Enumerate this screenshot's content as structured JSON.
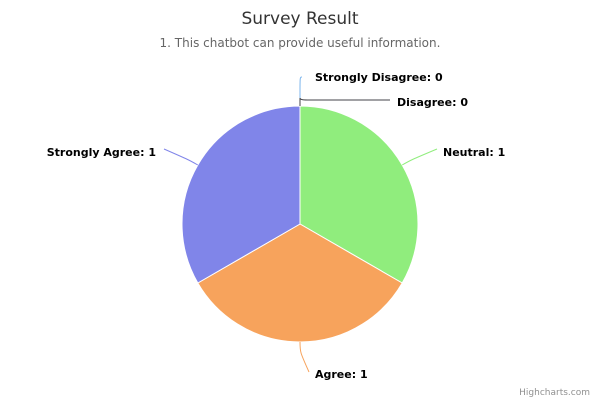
{
  "chart_data": {
    "type": "pie",
    "title": "Survey Result",
    "subtitle": "1. This chatbot can provide useful information.",
    "slices": [
      {
        "label": "Strongly Disagree",
        "value": 0,
        "color": "#7cb5ec"
      },
      {
        "label": "Disagree",
        "value": 0,
        "color": "#434348"
      },
      {
        "label": "Neutral",
        "value": 1,
        "color": "#90ed7d"
      },
      {
        "label": "Agree",
        "value": 1,
        "color": "#f7a35c"
      },
      {
        "label": "Strongly Agree",
        "value": 1,
        "color": "#8085e9"
      }
    ]
  },
  "credits": "Highcharts.com"
}
